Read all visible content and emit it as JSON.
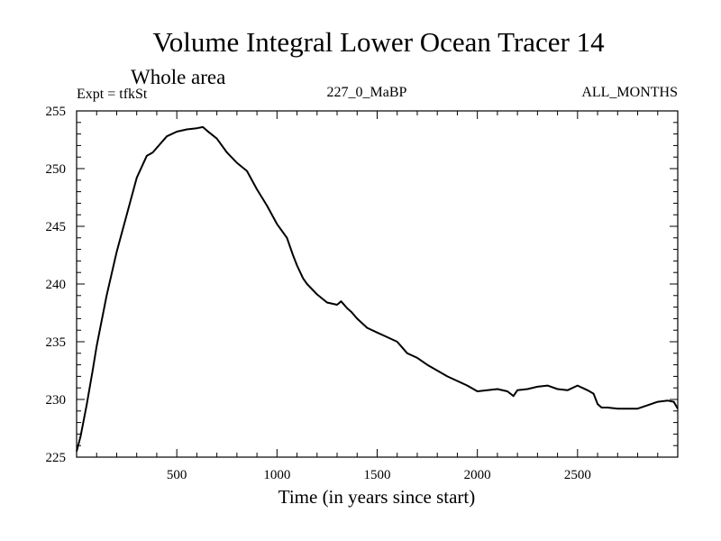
{
  "chart_data": {
    "type": "line",
    "title": "Volume Integral Lower Ocean Tracer 14",
    "subtitle": "Whole area",
    "expt_label": "Expt = tfkSt",
    "center_label": "227_0_MaBP",
    "right_label": "ALL_MONTHS",
    "xlabel": "Time (in years since start)",
    "ylabel": "",
    "xlim": [
      0,
      3000
    ],
    "ylim": [
      225,
      255
    ],
    "x_ticks": [
      500,
      1000,
      1500,
      2000,
      2500
    ],
    "y_ticks": [
      225,
      230,
      235,
      240,
      245,
      250,
      255
    ],
    "x_tick_labels": [
      "500",
      "1000",
      "1500",
      "2000",
      "2500"
    ],
    "y_tick_labels": [
      "225",
      "230",
      "235",
      "240",
      "245",
      "250",
      "255"
    ],
    "series": [
      {
        "name": "tracer14",
        "x": [
          0,
          20,
          50,
          80,
          100,
          150,
          200,
          250,
          300,
          350,
          380,
          400,
          450,
          500,
          550,
          600,
          630,
          650,
          700,
          750,
          800,
          850,
          900,
          950,
          1000,
          1050,
          1080,
          1100,
          1130,
          1150,
          1200,
          1250,
          1300,
          1320,
          1350,
          1370,
          1400,
          1450,
          1500,
          1550,
          1600,
          1630,
          1650,
          1700,
          1750,
          1800,
          1850,
          1900,
          1950,
          2000,
          2050,
          2100,
          2150,
          2180,
          2200,
          2250,
          2300,
          2350,
          2400,
          2450,
          2500,
          2550,
          2580,
          2600,
          2620,
          2650,
          2700,
          2750,
          2800,
          2850,
          2900,
          2950,
          2980,
          3000
        ],
        "y": [
          225.5,
          226.8,
          229.5,
          232.5,
          234.6,
          239.0,
          242.8,
          246.0,
          249.2,
          251.1,
          251.4,
          251.8,
          252.8,
          253.2,
          253.4,
          253.5,
          253.6,
          253.3,
          252.6,
          251.4,
          250.5,
          249.8,
          248.2,
          246.8,
          245.2,
          244.0,
          242.5,
          241.6,
          240.5,
          240.0,
          239.1,
          238.4,
          238.2,
          238.5,
          237.9,
          237.6,
          237.0,
          236.2,
          235.8,
          235.4,
          235.0,
          234.4,
          234.0,
          233.6,
          233.0,
          232.5,
          232.0,
          231.6,
          231.2,
          230.7,
          230.8,
          230.9,
          230.7,
          230.3,
          230.8,
          230.9,
          231.1,
          231.2,
          230.9,
          230.8,
          231.2,
          230.8,
          230.5,
          229.6,
          229.3,
          229.3,
          229.2,
          229.2,
          229.2,
          229.5,
          229.8,
          229.9,
          229.8,
          229.2
        ]
      }
    ]
  },
  "style": {
    "line_color": "#000000",
    "axis_color": "#000000",
    "background": "#ffffff"
  }
}
